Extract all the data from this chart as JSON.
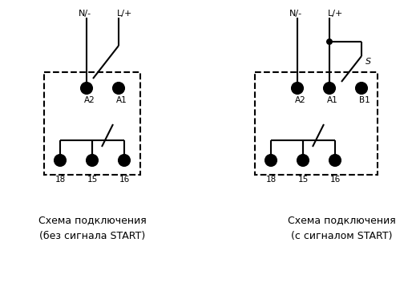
{
  "background_color": "#ffffff",
  "line_color": "#000000",
  "line_width": 1.5,
  "left_diagram": {
    "label_top1": "N/-",
    "label_top2": "L/+",
    "label_A2": "A2",
    "label_A1": "A1",
    "label_18": "18",
    "label_15": "15",
    "label_16": "16",
    "caption_line1": "Схема подключения",
    "caption_line2": "(без сигнала START)"
  },
  "right_diagram": {
    "label_top1": "N/-",
    "label_top2": "L/+",
    "label_A2": "A2",
    "label_A1": "A1",
    "label_B1": "B1",
    "label_S": "S",
    "label_18": "18",
    "label_15": "15",
    "label_16": "16",
    "caption_line1": "Схема подключения",
    "caption_line2": "(с сигналом START)"
  }
}
